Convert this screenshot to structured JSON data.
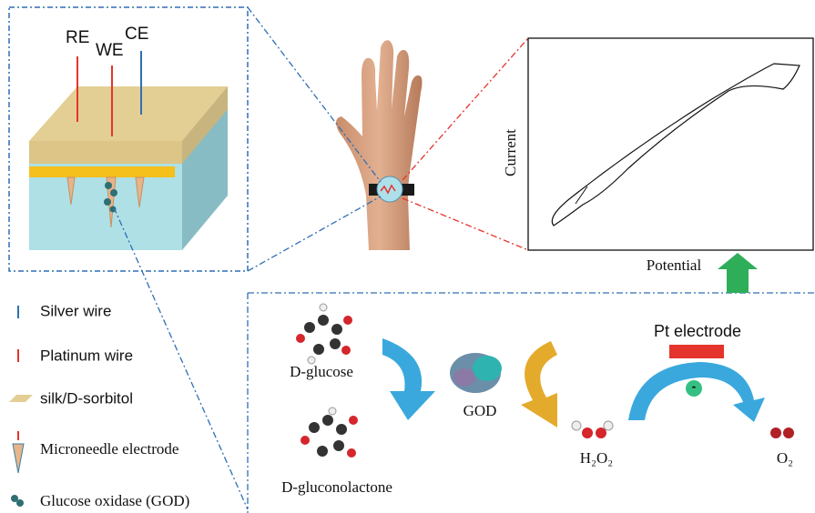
{
  "electrode": {
    "labels": [
      "RE",
      "WE",
      "CE"
    ]
  },
  "plot": {
    "y_label": "Current",
    "x_label": "Potential"
  },
  "legend": [
    {
      "label": "Silver wire"
    },
    {
      "label": "Platinum wire"
    },
    {
      "label": "silk/D-sorbitol"
    },
    {
      "label": "Microneedle electrode"
    },
    {
      "label": "Glucose oxidase (GOD)"
    }
  ],
  "reaction": {
    "substrate": "D-glucose",
    "product": "D-gluconolactone",
    "enzyme": "GOD",
    "peroxide": "H₂O₂",
    "oxygen": "O₂",
    "electrode": "Pt electrode",
    "electron": "-"
  }
}
